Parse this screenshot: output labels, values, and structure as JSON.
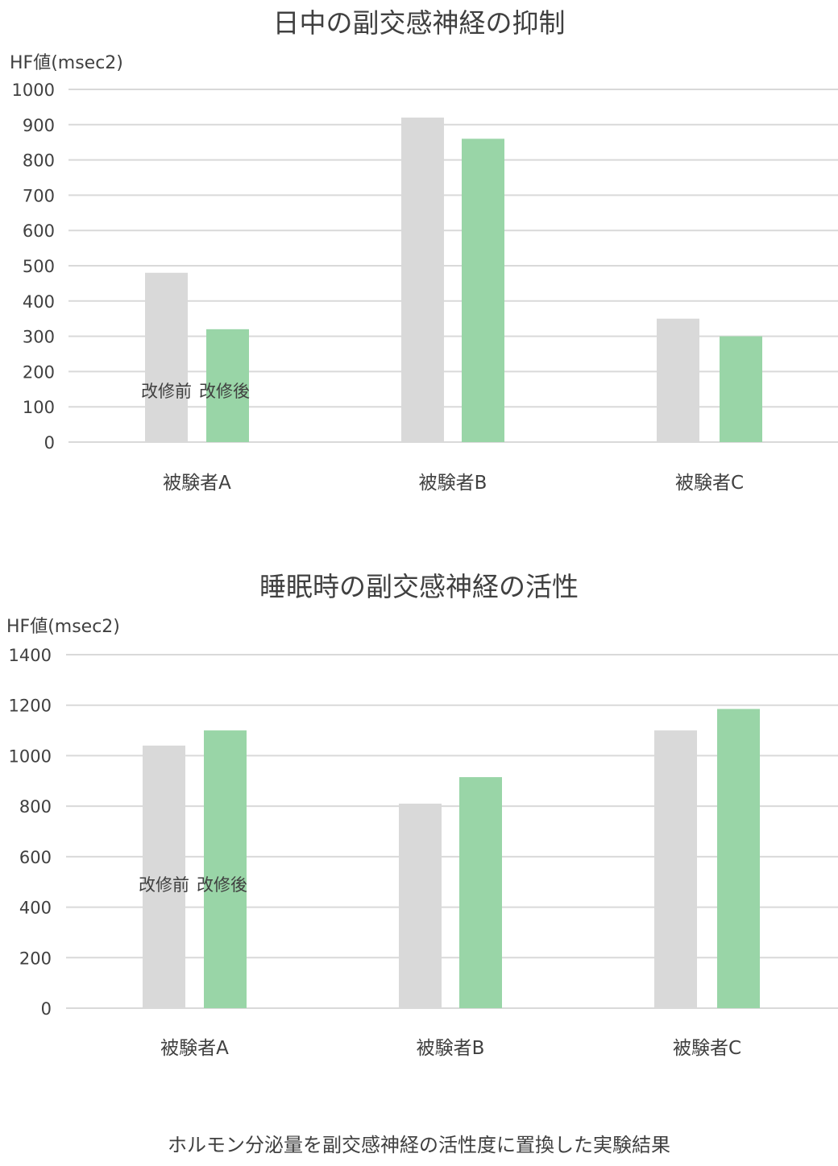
{
  "colors": {
    "before": "#d9d9d9",
    "after": "#99d5a7",
    "grid": "#d9d9d9",
    "text": "#404040"
  },
  "chart_data": [
    {
      "type": "bar",
      "title": "日中の副交感神経の抑制",
      "ylabel": "HF値(msec2)",
      "xlabel": "",
      "categories": [
        "被験者A",
        "被験者B",
        "被験者C"
      ],
      "series": [
        {
          "name": "改修前",
          "values": [
            480,
            920,
            350
          ]
        },
        {
          "name": "改修後",
          "values": [
            320,
            860,
            300
          ]
        }
      ],
      "ylim": [
        0,
        1000
      ],
      "yticks": [
        "0",
        "100",
        "200",
        "300",
        "400",
        "500",
        "600",
        "700",
        "800",
        "900",
        "1000"
      ],
      "grid": true,
      "legend": "inside-first-group"
    },
    {
      "type": "bar",
      "title": "睡眠時の副交感神経の活性",
      "ylabel": "HF値(msec2)",
      "xlabel": "",
      "categories": [
        "被験者A",
        "被験者B",
        "被験者C"
      ],
      "series": [
        {
          "name": "改修前",
          "values": [
            1040,
            810,
            1100
          ]
        },
        {
          "name": "改修後",
          "values": [
            1100,
            915,
            1185
          ]
        }
      ],
      "ylim": [
        0,
        1400
      ],
      "yticks": [
        "0",
        "200",
        "400",
        "600",
        "800",
        "1000",
        "1200",
        "1400"
      ],
      "grid": true,
      "legend": "inside-first-group"
    }
  ],
  "caption": "ホルモン分泌量を副交感神経の活性度に置換した実験結果"
}
